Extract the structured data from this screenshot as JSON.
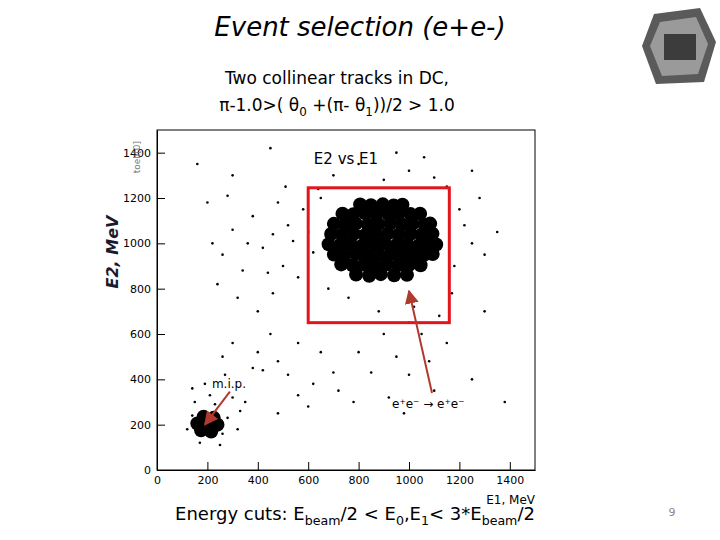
{
  "slide": {
    "title": "Event selection (e+e-)",
    "subtitle": [
      [
        {
          "t": "Two collinear tracks in DC,"
        }
      ],
      [
        {
          "t": "π-1.0>( θ"
        },
        {
          "sub": "0"
        },
        {
          "t": " +(π- θ"
        },
        {
          "sub": "1"
        },
        {
          "t": "))/2 > 1.0"
        }
      ]
    ],
    "footer": [
      {
        "t": "Energy cuts: E"
      },
      {
        "sub": "beam"
      },
      {
        "t": "/2 < E"
      },
      {
        "sub": "0"
      },
      {
        "t": ",E"
      },
      {
        "sub": "1"
      },
      {
        "t": "< 3*E"
      },
      {
        "sub": "beam"
      },
      {
        "t": "/2"
      }
    ],
    "page": 9
  },
  "chart_data": {
    "type": "scatter",
    "title": "E2 vs E1",
    "x_label": "E1, MeV",
    "y_label": "E2, MeV",
    "corner_label": "toeli[0]",
    "xlim": [
      0,
      1500
    ],
    "ylim": [
      0,
      1500
    ],
    "xticks": [
      0,
      200,
      400,
      600,
      800,
      1000,
      1200,
      1400
    ],
    "yticks": [
      0,
      200,
      400,
      600,
      800,
      1000,
      1200,
      1400
    ],
    "grid": false,
    "series": [
      {
        "color": "#000000",
        "marker": "circle",
        "x": [
          790,
          842,
          888,
          941,
          992,
          731,
          776,
          822,
          864,
          911,
          957,
          1001,
          1046,
          702,
          744,
          791,
          836,
          879,
          926,
          969,
          1016,
          1059,
          1094,
          681,
          726,
          769,
          816,
          861,
          904,
          951,
          994,
          1041,
          1084,
          1108,
          691,
          734,
          781,
          826,
          869,
          916,
          959,
          1006,
          1049,
          1093,
          702,
          746,
          789,
          836,
          879,
          926,
          971,
          1014,
          1061,
          1084,
          736,
          779,
          826,
          869,
          916,
          959,
          1006,
          1044,
          806,
          849,
          896,
          939,
          974,
          175,
          215,
          160,
          200,
          240,
          185,
          225
        ],
        "values": [
          862,
          857,
          864,
          859,
          861,
          907,
          903,
          906,
          902,
          908,
          904,
          905,
          903,
          951,
          948,
          953,
          947,
          950,
          952,
          949,
          951,
          948,
          953,
          996,
          993,
          997,
          992,
          995,
          998,
          994,
          996,
          993,
          997,
          995,
          1041,
          1038,
          1042,
          1037,
          1040,
          1043,
          1039,
          1041,
          1038,
          1042,
          1086,
          1083,
          1087,
          1082,
          1085,
          1088,
          1084,
          1086,
          1083,
          1087,
          1131,
          1128,
          1132,
          1127,
          1130,
          1133,
          1129,
          1131,
          1171,
          1168,
          1172,
          1167,
          1170,
          175,
          170,
          205,
          205,
          200,
          235,
          230
        ]
      },
      {
        "color": "#000000",
        "marker": "point",
        "x": [
          140,
          260,
          230,
          150,
          280,
          120,
          300,
          210,
          170,
          250,
          330,
          190,
          270,
          140,
          320,
          350,
          420,
          480,
          400,
          520,
          560,
          450,
          380,
          600,
          650,
          560,
          700,
          480,
          620,
          300,
          260,
          720,
          780,
          800,
          220,
          260,
          300,
          340,
          380,
          420,
          460,
          500,
          540,
          580,
          620,
          200,
          240,
          280,
          360,
          440,
          480,
          520,
          560,
          600,
          640,
          320,
          400,
          460,
          510,
          900,
          950,
          1000,
          1050,
          1100,
          850,
          920,
          1000,
          1080,
          980,
          1150,
          880,
          1020,
          1120,
          700,
          800,
          900,
          1000,
          1100,
          1200,
          1250,
          1180,
          1220,
          1300,
          1150,
          650,
          680,
          760,
          1170,
          1280,
          1350,
          950,
          1060,
          1250,
          1250,
          1300,
          1380,
          160,
          300,
          450
        ],
        "values": [
          240,
          160,
          290,
          300,
          230,
          180,
          320,
          330,
          120,
          110,
          260,
          380,
          420,
          360,
          180,
          300,
          440,
          250,
          520,
          420,
          330,
          600,
          450,
          280,
          520,
          560,
          430,
          480,
          380,
          560,
          500,
          350,
          300,
          520,
          1000,
          950,
          1060,
          880,
          1120,
          980,
          1040,
          900,
          1010,
          1150,
          960,
          1180,
          820,
          1210,
          1000,
          870,
          1180,
          1080,
          850,
          1050,
          1240,
          760,
          700,
          780,
          1250,
          600,
          500,
          420,
          600,
          350,
          430,
          320,
          650,
          480,
          250,
          560,
          700,
          720,
          680,
          1300,
          1350,
          1280,
          1320,
          1290,
          1150,
          1000,
          900,
          1080,
          950,
          1250,
          1200,
          800,
          760,
          780,
          1200,
          1050,
          1400,
          1380,
          1320,
          400,
          700,
          300,
          1350,
          1300,
          1420
        ]
      }
    ],
    "selection_box": {
      "x": [
        600,
        1160
      ],
      "y": [
        650,
        1245
      ]
    },
    "annotations": [
      {
        "text": "m.i.p.",
        "x": 190,
        "y": 200
      },
      {
        "text": "e⁺e⁻ → e⁺e⁻",
        "x": 1000,
        "y": 790
      }
    ]
  }
}
